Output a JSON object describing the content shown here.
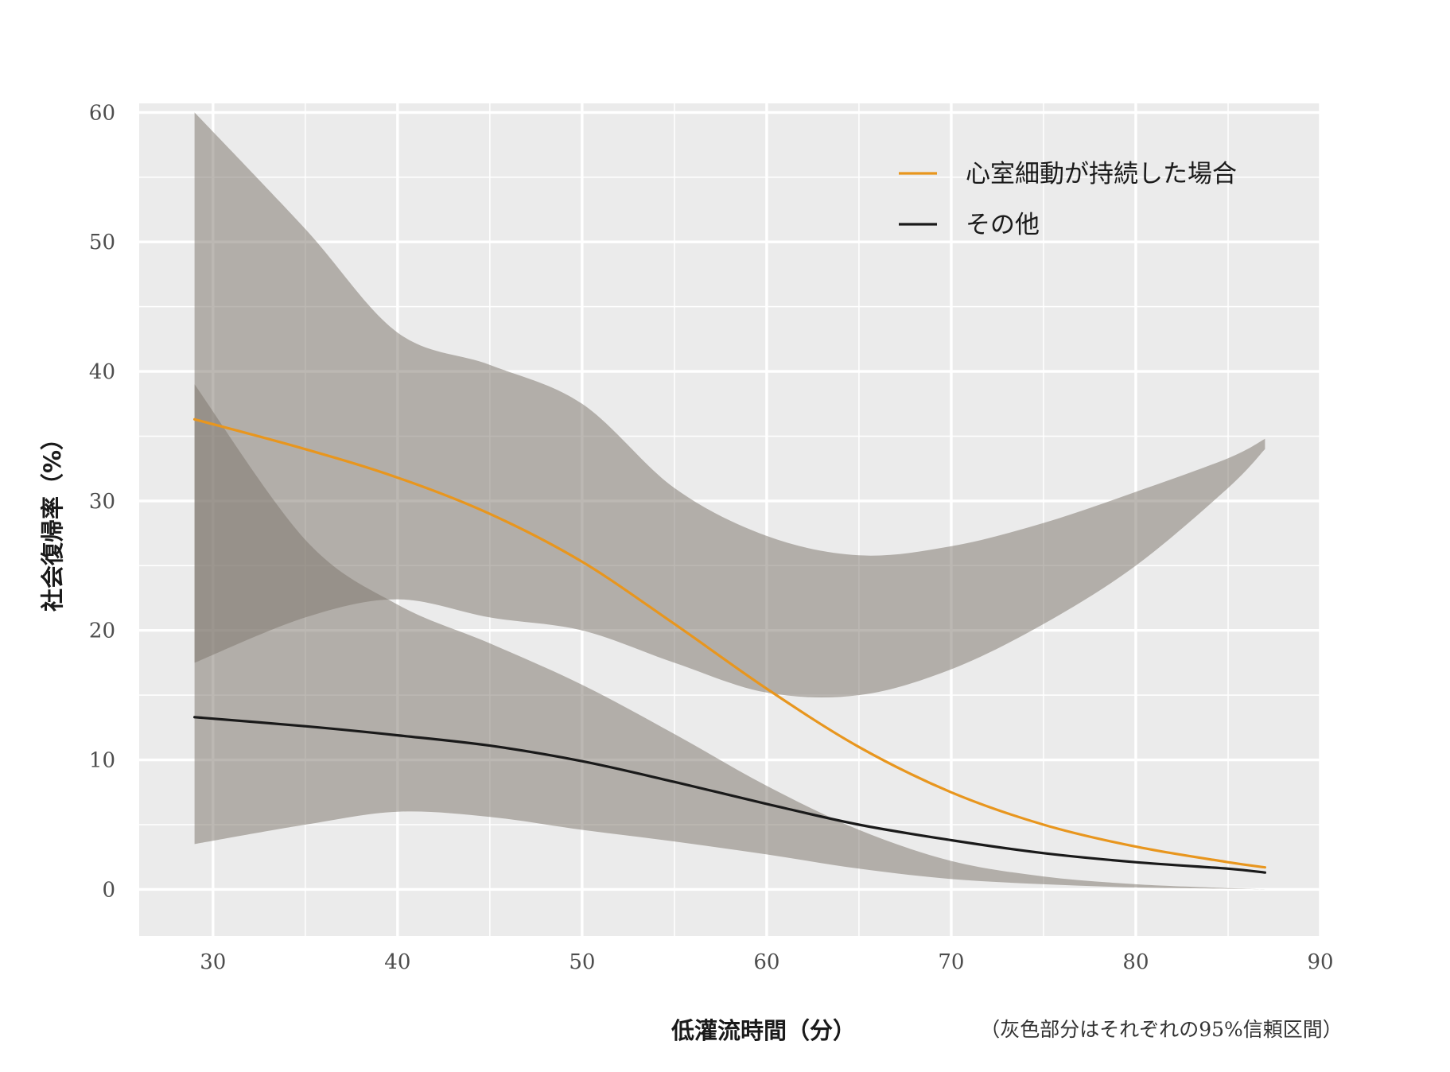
{
  "chart_data": {
    "type": "line",
    "xlabel": "低灌流時間（分）",
    "ylabel": "社会復帰率（%）",
    "note": "（灰色部分はそれぞれの95%信頼区間）",
    "xlim": [
      26,
      90
    ],
    "ylim": [
      -3.6,
      60.7
    ],
    "x_ticks": [
      30,
      40,
      50,
      60,
      70,
      80,
      90
    ],
    "y_ticks": [
      0,
      10,
      20,
      30,
      40,
      50,
      60
    ],
    "grid": true,
    "legend_position": "top-right",
    "series": [
      {
        "name": "心室細動が持続した場合",
        "color": "#E8961E",
        "x": [
          29,
          35,
          40,
          45,
          50,
          55,
          60,
          65,
          70,
          75,
          80,
          85,
          87
        ],
        "y": [
          36.3,
          34.0,
          31.8,
          29.0,
          25.3,
          20.5,
          15.5,
          11.0,
          7.5,
          5.0,
          3.3,
          2.1,
          1.7
        ],
        "lower": [
          17.5,
          21.0,
          22.4,
          21.0,
          20.0,
          17.5,
          15.2,
          15.0,
          17.0,
          20.5,
          25.0,
          31.0,
          34.0
        ],
        "upper": [
          60.0,
          51.0,
          43.0,
          40.5,
          37.5,
          31.0,
          27.3,
          25.8,
          26.5,
          28.3,
          30.7,
          33.3,
          34.8
        ]
      },
      {
        "name": "その他",
        "color": "#1a1a1a",
        "x": [
          29,
          35,
          40,
          45,
          50,
          55,
          60,
          65,
          70,
          75,
          80,
          85,
          87
        ],
        "y": [
          13.3,
          12.6,
          11.9,
          11.1,
          9.9,
          8.3,
          6.6,
          5.0,
          3.8,
          2.8,
          2.1,
          1.6,
          1.3
        ],
        "lower": [
          3.5,
          5.0,
          6.0,
          5.6,
          4.6,
          3.7,
          2.7,
          1.6,
          0.8,
          0.4,
          0.15,
          0.05,
          0.0
        ],
        "upper": [
          39.0,
          27.0,
          22.0,
          19.0,
          15.8,
          12.0,
          8.0,
          4.6,
          2.2,
          1.0,
          0.4,
          0.1,
          0.0
        ]
      }
    ],
    "band_color": "#7f766e"
  }
}
